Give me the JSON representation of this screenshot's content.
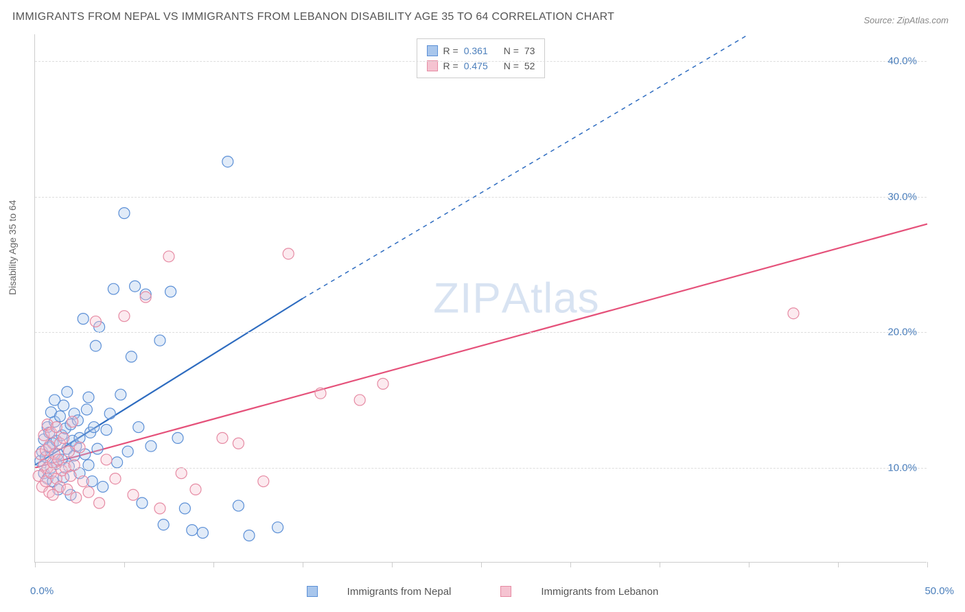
{
  "title": "IMMIGRANTS FROM NEPAL VS IMMIGRANTS FROM LEBANON DISABILITY AGE 35 TO 64 CORRELATION CHART",
  "source": "Source: ZipAtlas.com",
  "ylabel": "Disability Age 35 to 64",
  "watermark_a": "ZIP",
  "watermark_b": "Atlas",
  "chart": {
    "type": "scatter",
    "background_color": "#ffffff",
    "grid_color": "#dddddd",
    "axis_color": "#cccccc",
    "tick_label_color": "#4a7ebb",
    "xlim": [
      0,
      50
    ],
    "ylim": [
      3,
      42
    ],
    "x_tick_positions": [
      0,
      5,
      10,
      15,
      20,
      25,
      30,
      35,
      40,
      45,
      50
    ],
    "x_labels": {
      "0": "0.0%",
      "50": "50.0%"
    },
    "y_gridlines": [
      10,
      20,
      30,
      40
    ],
    "y_labels": {
      "10": "10.0%",
      "20": "20.0%",
      "30": "30.0%",
      "40": "40.0%"
    },
    "marker_radius": 8,
    "marker_stroke_width": 1.2,
    "marker_fill_opacity": 0.35,
    "series": [
      {
        "name": "Immigrants from Nepal",
        "color_stroke": "#5b8fd6",
        "color_fill": "#a8c6ec",
        "trend_color": "#2e6cc0",
        "trend_width": 2.2,
        "trend_dashed_extension": true,
        "R": "0.361",
        "N": "73",
        "trend": {
          "x1": 0,
          "y1": 10.2,
          "x2": 15,
          "y2": 22.5,
          "x2_ext": 40,
          "y2_ext": 42
        },
        "points": [
          [
            0.3,
            10.5
          ],
          [
            0.4,
            11.2
          ],
          [
            0.5,
            9.6
          ],
          [
            0.5,
            12.1
          ],
          [
            0.6,
            10.8
          ],
          [
            0.7,
            13.0
          ],
          [
            0.7,
            9.2
          ],
          [
            0.8,
            11.5
          ],
          [
            0.8,
            12.6
          ],
          [
            0.9,
            10.0
          ],
          [
            0.9,
            14.1
          ],
          [
            1.0,
            11.8
          ],
          [
            1.0,
            9.0
          ],
          [
            1.1,
            13.4
          ],
          [
            1.1,
            15.0
          ],
          [
            1.2,
            10.3
          ],
          [
            1.2,
            12.0
          ],
          [
            1.3,
            11.0
          ],
          [
            1.3,
            8.4
          ],
          [
            1.4,
            13.8
          ],
          [
            1.5,
            12.4
          ],
          [
            1.5,
            10.6
          ],
          [
            1.6,
            14.6
          ],
          [
            1.6,
            9.3
          ],
          [
            1.7,
            12.9
          ],
          [
            1.8,
            11.4
          ],
          [
            1.8,
            15.6
          ],
          [
            1.9,
            10.1
          ],
          [
            2.0,
            13.2
          ],
          [
            2.0,
            8.0
          ],
          [
            2.1,
            12.0
          ],
          [
            2.2,
            14.0
          ],
          [
            2.2,
            10.9
          ],
          [
            2.3,
            11.6
          ],
          [
            2.4,
            13.5
          ],
          [
            2.5,
            9.6
          ],
          [
            2.5,
            12.2
          ],
          [
            2.7,
            21.0
          ],
          [
            2.8,
            11.0
          ],
          [
            2.9,
            14.3
          ],
          [
            3.0,
            10.2
          ],
          [
            3.0,
            15.2
          ],
          [
            3.1,
            12.6
          ],
          [
            3.2,
            9.0
          ],
          [
            3.3,
            13.0
          ],
          [
            3.4,
            19.0
          ],
          [
            3.5,
            11.4
          ],
          [
            3.6,
            20.4
          ],
          [
            3.8,
            8.6
          ],
          [
            4.0,
            12.8
          ],
          [
            4.2,
            14.0
          ],
          [
            4.4,
            23.2
          ],
          [
            4.6,
            10.4
          ],
          [
            4.8,
            15.4
          ],
          [
            5.0,
            28.8
          ],
          [
            5.2,
            11.2
          ],
          [
            5.4,
            18.2
          ],
          [
            5.6,
            23.4
          ],
          [
            5.8,
            13.0
          ],
          [
            6.0,
            7.4
          ],
          [
            6.2,
            22.8
          ],
          [
            6.5,
            11.6
          ],
          [
            7.0,
            19.4
          ],
          [
            7.2,
            5.8
          ],
          [
            7.6,
            23.0
          ],
          [
            8.0,
            12.2
          ],
          [
            8.4,
            7.0
          ],
          [
            8.8,
            5.4
          ],
          [
            9.4,
            5.2
          ],
          [
            10.8,
            32.6
          ],
          [
            11.4,
            7.2
          ],
          [
            12.0,
            5.0
          ],
          [
            13.6,
            5.6
          ]
        ]
      },
      {
        "name": "Immigrants from Lebanon",
        "color_stroke": "#e68aa3",
        "color_fill": "#f5c3d1",
        "trend_color": "#e5517a",
        "trend_width": 2.2,
        "trend_dashed_extension": false,
        "R": "0.475",
        "N": "52",
        "trend": {
          "x1": 0,
          "y1": 10.0,
          "x2": 50,
          "y2": 28.0
        },
        "points": [
          [
            0.2,
            9.4
          ],
          [
            0.3,
            11.0
          ],
          [
            0.4,
            8.6
          ],
          [
            0.5,
            10.2
          ],
          [
            0.5,
            12.4
          ],
          [
            0.6,
            9.0
          ],
          [
            0.6,
            11.3
          ],
          [
            0.7,
            13.2
          ],
          [
            0.7,
            10.0
          ],
          [
            0.8,
            8.2
          ],
          [
            0.8,
            11.6
          ],
          [
            0.9,
            9.6
          ],
          [
            0.9,
            12.6
          ],
          [
            1.0,
            10.4
          ],
          [
            1.0,
            8.0
          ],
          [
            1.1,
            11.0
          ],
          [
            1.2,
            9.2
          ],
          [
            1.2,
            13.0
          ],
          [
            1.3,
            10.6
          ],
          [
            1.4,
            8.6
          ],
          [
            1.4,
            11.8
          ],
          [
            1.5,
            9.8
          ],
          [
            1.6,
            12.2
          ],
          [
            1.7,
            10.0
          ],
          [
            1.8,
            8.4
          ],
          [
            1.9,
            11.2
          ],
          [
            2.0,
            9.4
          ],
          [
            2.1,
            13.4
          ],
          [
            2.2,
            10.2
          ],
          [
            2.3,
            7.8
          ],
          [
            2.5,
            11.5
          ],
          [
            2.7,
            9.0
          ],
          [
            3.0,
            8.2
          ],
          [
            3.4,
            20.8
          ],
          [
            3.6,
            7.4
          ],
          [
            4.0,
            10.6
          ],
          [
            4.5,
            9.2
          ],
          [
            5.0,
            21.2
          ],
          [
            5.5,
            8.0
          ],
          [
            6.2,
            22.6
          ],
          [
            7.0,
            7.0
          ],
          [
            7.5,
            25.6
          ],
          [
            8.2,
            9.6
          ],
          [
            9.0,
            8.4
          ],
          [
            10.5,
            12.2
          ],
          [
            11.4,
            11.8
          ],
          [
            12.8,
            9.0
          ],
          [
            14.2,
            25.8
          ],
          [
            16.0,
            15.5
          ],
          [
            18.2,
            15.0
          ],
          [
            19.5,
            16.2
          ],
          [
            42.5,
            21.4
          ]
        ]
      }
    ],
    "legend_top": [
      {
        "series_idx": 0,
        "r_label": "R =",
        "n_label": "N ="
      },
      {
        "series_idx": 1,
        "r_label": "R =",
        "n_label": "N ="
      }
    ]
  }
}
